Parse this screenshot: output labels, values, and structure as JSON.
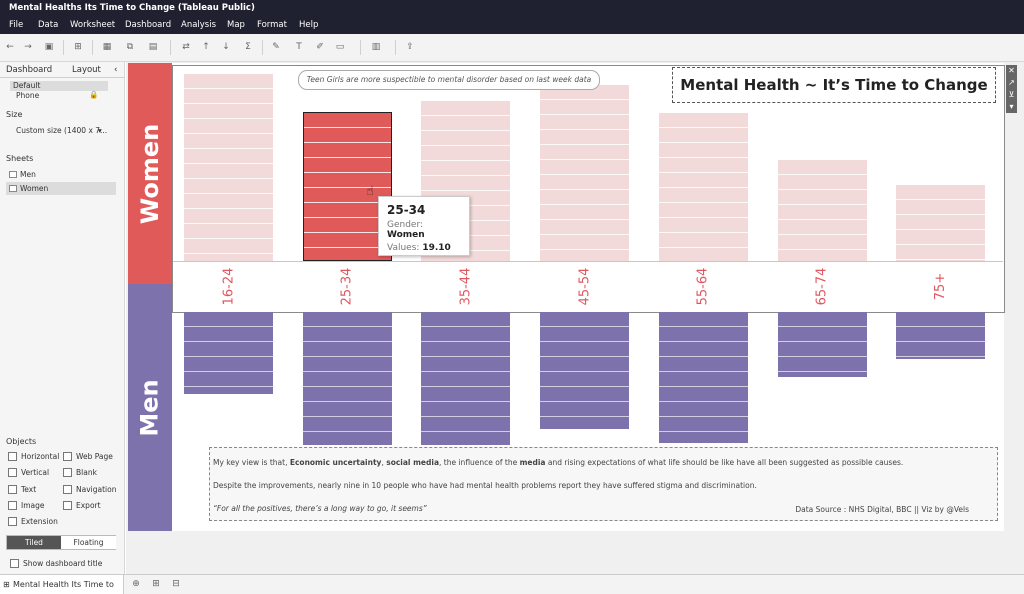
{
  "window": {
    "title": "Mental Healths Its Time to Change (Tableau Public)"
  },
  "menu": [
    "File",
    "Data",
    "Worksheet",
    "Dashboard",
    "Analysis",
    "Map",
    "Format",
    "Help"
  ],
  "sidebar": {
    "tabs": [
      "Dashboard",
      "Layout"
    ],
    "device_default": "Default",
    "device_phone": "Phone",
    "size_heading": "Size",
    "size_value": "Custom size (1400 x 7...",
    "sheets_heading": "Sheets",
    "sheets": [
      "Men",
      "Women"
    ],
    "objects_heading": "Objects",
    "objects": [
      "Horizontal",
      "Web Page",
      "Vertical",
      "Blank",
      "Text",
      "Navigation",
      "Image",
      "Export",
      "Extension"
    ],
    "tiled": "Tiled",
    "floating": "Floating",
    "show_title": "Show dashboard title"
  },
  "dashboard": {
    "title": "Mental Health ~ It’s Time to Change",
    "annotation": "Teen Girls are more suspectible to mental disorder  based on last week data",
    "women_label": "Women",
    "men_label": "Men",
    "notes": {
      "line1_pre": "My key view is that, ",
      "line1_b1": "Economic uncertainty",
      "line1_sep": ", ",
      "line1_b2": "social media",
      "line1_mid": ", the influence of the ",
      "line1_b3": "media",
      "line1_post": " and rising expectations of what life should be like have all been suggested as possible causes.",
      "line2": "Despite the improvements, nearly nine in 10 people who have had mental health problems report they have suffered stigma and discrimination.",
      "quote": "“For all the positives, there’s a long way to go, it seems”",
      "source": "Data Source : NHS Digital, BBC || Viz by @Vels"
    },
    "tooltip": {
      "title": "25-34",
      "gender_label": "Gender:",
      "gender_value": "Women",
      "values_label": "Values:",
      "values_value": "19.10"
    }
  },
  "colors": {
    "women_band": "#e05a5a",
    "men_band": "#7e72ad",
    "women_bar": "#f3dada",
    "selected_bar": "#e05a5a",
    "men_bar": "#7e72ad",
    "age_label": "#e0575f"
  },
  "chart_data": {
    "type": "bar",
    "categories": [
      "16-24",
      "25-34",
      "35-44",
      "45-54",
      "55-64",
      "65-74",
      "75+"
    ],
    "series": [
      {
        "name": "Women",
        "values": [
          24.0,
          19.1,
          20.5,
          22.6,
          19.0,
          12.9,
          9.7
        ]
      },
      {
        "name": "Men",
        "values": [
          10.5,
          17.0,
          17.0,
          15.0,
          16.8,
          8.3,
          6.0
        ]
      }
    ],
    "selected": {
      "category": "25-34",
      "series": "Women"
    }
  },
  "bottom": {
    "tab": "Mental Health Its Time to C..."
  }
}
